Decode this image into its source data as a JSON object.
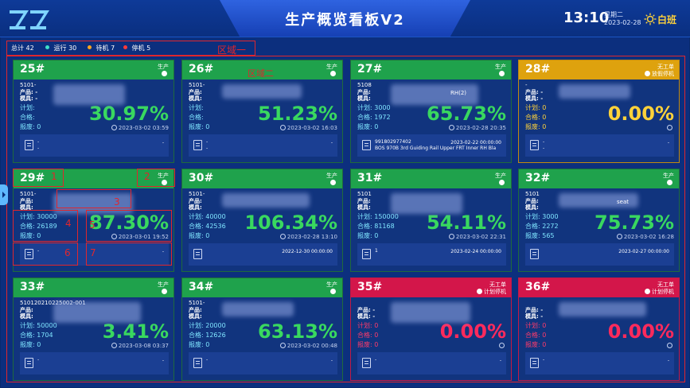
{
  "header": {
    "title": "生产概览看板V2",
    "time": "13:10",
    "weekday": "星期二",
    "date": "2023-02-28",
    "shift": "白班"
  },
  "summary": {
    "total_label": "总计",
    "total": "42",
    "running_label": "运行",
    "running": "30",
    "standby_label": "待机",
    "standby": "7",
    "stopped_label": "停机",
    "stopped": "5",
    "region1_label": "区域一",
    "region2_label": "区域二"
  },
  "labels": {
    "product": "产品:",
    "mold": "模具:",
    "plan": "计划:",
    "pass": "合格:",
    "scrap": "报废:"
  },
  "colors": {
    "running": "#1fa24c",
    "idle": "#dea20e",
    "stopped": "#d3164a"
  },
  "annotations": [
    "1",
    "2",
    "3",
    "4",
    "5",
    "6",
    "7"
  ],
  "cards": [
    {
      "num": "25#",
      "status": "生产",
      "substatus": "",
      "code": "5101-",
      "product": "-",
      "mold": "-",
      "plan": "",
      "pass": "",
      "scrap": "0",
      "percent": "30.97%",
      "time": "2023-03-02 03:59",
      "foot1": "-",
      "foot2": "-",
      "footdate": "-",
      "type": "green"
    },
    {
      "num": "26#",
      "status": "生产",
      "substatus": "",
      "code": "5101-",
      "product": "",
      "mold": "",
      "plan": "",
      "pass": "",
      "scrap": "0",
      "percent": "51.23%",
      "time": "2023-03-02 16:03",
      "foot1": "-",
      "foot2": "-",
      "footdate": "-",
      "type": "green"
    },
    {
      "num": "27#",
      "status": "生产",
      "substatus": "",
      "code": "5108",
      "product": "",
      "mold": "",
      "plan": "3000",
      "pass": "1972",
      "scrap": "0",
      "percent": "65.73%",
      "time": "2023-02-28 20:35",
      "foot1": "991802977402",
      "foot2": "BOS 970B 3rd Guiding Rail Upper FRT Inner RH Bla",
      "footdate": "2023-02-22 00:00:00",
      "extra": "RH(2)",
      "type": "green"
    },
    {
      "num": "28#",
      "status": "无工单",
      "substatus": "放假停机",
      "code": "-",
      "product": "-",
      "mold": "-",
      "plan": "0",
      "pass": "0",
      "scrap": "0",
      "percent": "0.00%",
      "time": "",
      "foot1": "-",
      "foot2": "-",
      "footdate": "-",
      "type": "yellow"
    },
    {
      "num": "29#",
      "status": "生产",
      "substatus": "",
      "code": "5101-",
      "product": "",
      "mold": "",
      "plan": "30000",
      "pass": "26189",
      "scrap": "0",
      "percent": "87.30%",
      "time": "2023-03-01 19:52",
      "foot1": "-",
      "foot2": "",
      "footdate": "-",
      "type": "green"
    },
    {
      "num": "30#",
      "status": "生产",
      "substatus": "",
      "code": "5101-",
      "product": "",
      "mold": "",
      "plan": "40000",
      "pass": "42536",
      "scrap": "0",
      "percent": "106.34%",
      "time": "2023-02-28 13:10",
      "foot1": "",
      "foot2": "",
      "footdate": "2022-12-30 00:00:00",
      "type": "green"
    },
    {
      "num": "31#",
      "status": "生产",
      "substatus": "",
      "code": "5101",
      "product": "",
      "mold": "",
      "plan": "150000",
      "pass": "81168",
      "scrap": "0",
      "percent": "54.11%",
      "time": "2023-03-02 22:31",
      "foot1": "1",
      "foot2": "",
      "footdate": "2023-02-24 00:00:00",
      "type": "green"
    },
    {
      "num": "32#",
      "status": "生产",
      "substatus": "",
      "code": "5101",
      "product": "",
      "mold": "",
      "plan": "3000",
      "pass": "2272",
      "scrap": "565",
      "percent": "75.73%",
      "time": "2023-03-02 16:28",
      "foot1": "",
      "foot2": "",
      "footdate": "2023-02-27 00:00:00",
      "extra": "seat",
      "type": "green"
    },
    {
      "num": "33#",
      "status": "生产",
      "substatus": "",
      "code": "510120210225002-001",
      "product": "",
      "mold": "",
      "plan": "50000",
      "pass": "1704",
      "scrap": "0",
      "percent": "3.41%",
      "time": "2023-03-08 03:37",
      "foot1": "-",
      "foot2": "",
      "footdate": "-",
      "type": "green"
    },
    {
      "num": "34#",
      "status": "生产",
      "substatus": "",
      "code": "5101-",
      "product": "",
      "mold": "",
      "plan": "20000",
      "pass": "12626",
      "scrap": "0",
      "percent": "63.13%",
      "time": "2023-03-02 00:48",
      "foot1": "-",
      "foot2": "",
      "footdate": "-",
      "type": "green"
    },
    {
      "num": "35#",
      "status": "无工单",
      "substatus": "计划停机",
      "code": "",
      "product": "-",
      "mold": "-",
      "plan": "0",
      "pass": "0",
      "scrap": "0",
      "percent": "0.00%",
      "time": "",
      "foot1": "-",
      "foot2": "",
      "footdate": "-",
      "type": "red"
    },
    {
      "num": "36#",
      "status": "无工单",
      "substatus": "计划停机",
      "code": "",
      "product": "-",
      "mold": "-",
      "plan": "0",
      "pass": "0",
      "scrap": "0",
      "percent": "0.00%",
      "time": "",
      "foot1": "-",
      "foot2": "",
      "footdate": "-",
      "type": "red"
    }
  ]
}
